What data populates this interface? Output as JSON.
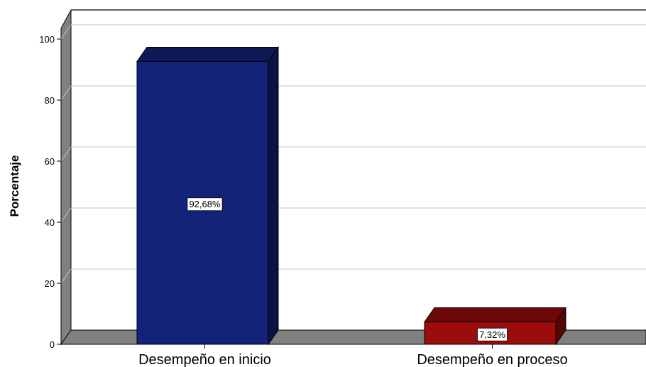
{
  "chart_data": {
    "type": "bar",
    "categories": [
      "Desempeño en inicio",
      "Desempeño en proceso"
    ],
    "values": [
      92.68,
      7.32
    ],
    "data_labels": [
      "92,68%",
      "7,32%"
    ],
    "colors": [
      "#13237a",
      "#9b0c0c"
    ],
    "ylabel": "Porcentaje",
    "xlabel": "",
    "ylim": [
      0,
      100
    ],
    "yticks": [
      0,
      20,
      40,
      60,
      80,
      100
    ],
    "grid": true,
    "style": "3d"
  }
}
